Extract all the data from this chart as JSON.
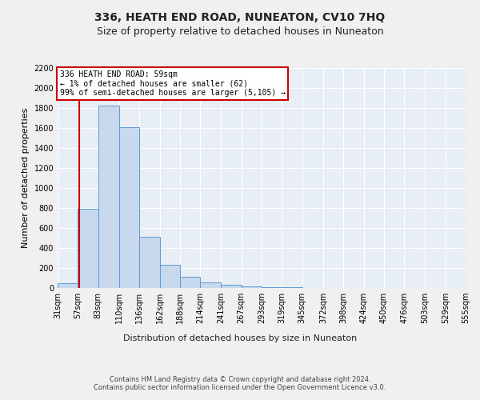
{
  "title": "336, HEATH END ROAD, NUNEATON, CV10 7HQ",
  "subtitle": "Size of property relative to detached houses in Nuneaton",
  "xlabel": "Distribution of detached houses by size in Nuneaton",
  "ylabel": "Number of detached properties",
  "bin_edges": [
    31,
    57,
    83,
    110,
    136,
    162,
    188,
    214,
    241,
    267,
    293,
    319,
    345,
    372,
    398,
    424,
    450,
    476,
    503,
    529,
    555
  ],
  "bar_heights": [
    50,
    790,
    1820,
    1610,
    510,
    235,
    110,
    55,
    30,
    15,
    8,
    5,
    3,
    2,
    2,
    1,
    1,
    1,
    1,
    0
  ],
  "bar_color": "#c9d9ed",
  "bar_edge_color": "#5b9bd5",
  "red_line_x": 59,
  "annotation_text": "336 HEATH END ROAD: 59sqm\n← 1% of detached houses are smaller (62)\n99% of semi-detached houses are larger (5,105) →",
  "annotation_box_color": "#ffffff",
  "annotation_box_edge_color": "#cc0000",
  "red_line_color": "#cc0000",
  "ylim": [
    0,
    2200
  ],
  "yticks": [
    0,
    200,
    400,
    600,
    800,
    1000,
    1200,
    1400,
    1600,
    1800,
    2000,
    2200
  ],
  "footer_text": "Contains HM Land Registry data © Crown copyright and database right 2024.\nContains public sector information licensed under the Open Government Licence v3.0.",
  "fig_bg_color": "#f0f0f0",
  "plot_bg_color": "#e8eef5",
  "title_fontsize": 10,
  "subtitle_fontsize": 9,
  "axis_label_fontsize": 8,
  "tick_fontsize": 7,
  "footer_fontsize": 6
}
